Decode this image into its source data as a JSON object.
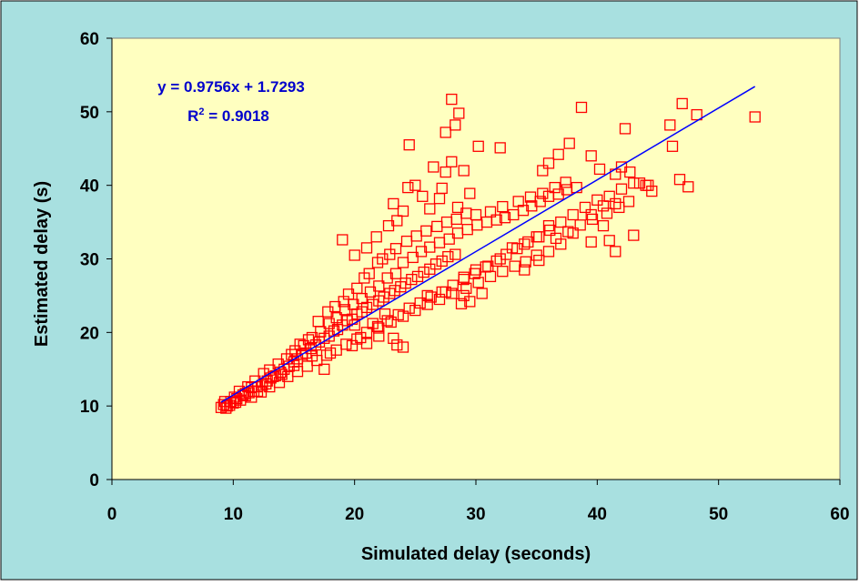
{
  "chart_data": {
    "type": "scatter",
    "title": "",
    "xlabel": "Simulated delay (seconds)",
    "ylabel": "Estimated delay (s)",
    "xlim": [
      0,
      60
    ],
    "ylim": [
      0,
      60
    ],
    "x_ticks": [
      0,
      10,
      20,
      30,
      40,
      50,
      60
    ],
    "y_ticks": [
      0,
      10,
      20,
      30,
      40,
      50,
      60
    ],
    "grid": false,
    "legend": "none",
    "colors": {
      "frame_background": "#a8e0e0",
      "plot_background": "#ffffc0",
      "marker": "#ff0000",
      "trendline": "#0000ff",
      "equation_text": "#0000cc",
      "axis_text": "#000000"
    },
    "annotations": {
      "equation": "y = 0.9756x + 1.7293",
      "r2_prefix": "R",
      "r2_superscript": "2",
      "r2_suffix": " = 0.9018"
    },
    "trendline": {
      "slope": 0.9756,
      "intercept": 1.7293,
      "x_range": [
        9,
        53
      ]
    },
    "series": [
      {
        "marker": "hollow-square",
        "points": [
          [
            9.0,
            9.8
          ],
          [
            9.2,
            10.2
          ],
          [
            9.5,
            10.0
          ],
          [
            9.8,
            10.6
          ],
          [
            10.0,
            10.4
          ],
          [
            10.3,
            11.0
          ],
          [
            10.6,
            10.8
          ],
          [
            11.0,
            11.4
          ],
          [
            11.3,
            11.8
          ],
          [
            11.7,
            12.0
          ],
          [
            12.0,
            12.6
          ],
          [
            12.4,
            12.8
          ],
          [
            12.8,
            13.4
          ],
          [
            13.1,
            13.8
          ],
          [
            13.5,
            14.1
          ],
          [
            13.9,
            14.6
          ],
          [
            14.2,
            15.0
          ],
          [
            14.6,
            15.4
          ],
          [
            15.0,
            16.0
          ],
          [
            15.3,
            16.4
          ],
          [
            15.7,
            17.0
          ],
          [
            16.0,
            17.2
          ],
          [
            16.4,
            17.8
          ],
          [
            16.8,
            18.3
          ],
          [
            17.1,
            18.7
          ],
          [
            17.5,
            19.2
          ],
          [
            17.9,
            19.5
          ],
          [
            18.3,
            20.2
          ],
          [
            18.6,
            20.4
          ],
          [
            19.0,
            21.0
          ],
          [
            19.4,
            21.6
          ],
          [
            19.8,
            21.8
          ],
          [
            20.2,
            22.5
          ],
          [
            20.6,
            22.8
          ],
          [
            21.0,
            23.4
          ],
          [
            21.5,
            23.8
          ],
          [
            22.0,
            24.3
          ],
          [
            22.4,
            24.8
          ],
          [
            22.9,
            25.3
          ],
          [
            23.3,
            25.7
          ],
          [
            23.8,
            26.2
          ],
          [
            24.2,
            26.7
          ],
          [
            24.7,
            27.2
          ],
          [
            25.2,
            27.6
          ],
          [
            25.7,
            28.2
          ],
          [
            26.2,
            28.6
          ],
          [
            26.7,
            29.3
          ],
          [
            27.2,
            29.7
          ],
          [
            27.7,
            30.3
          ],
          [
            28.3,
            30.6
          ],
          [
            10.5,
            12.0
          ],
          [
            11.2,
            12.6
          ],
          [
            11.8,
            13.4
          ],
          [
            12.5,
            14.4
          ],
          [
            13.0,
            14.9
          ],
          [
            13.7,
            15.7
          ],
          [
            14.4,
            16.4
          ],
          [
            15.1,
            17.5
          ],
          [
            15.8,
            18.2
          ],
          [
            16.5,
            19.3
          ],
          [
            17.2,
            20.1
          ],
          [
            17.9,
            21.2
          ],
          [
            18.5,
            22.0
          ],
          [
            19.2,
            23.1
          ],
          [
            19.9,
            23.8
          ],
          [
            20.6,
            24.6
          ],
          [
            21.3,
            25.5
          ],
          [
            22.0,
            26.3
          ],
          [
            22.7,
            27.4
          ],
          [
            23.4,
            28.0
          ],
          [
            11.5,
            11.2
          ],
          [
            12.3,
            11.9
          ],
          [
            13.0,
            12.6
          ],
          [
            13.8,
            13.2
          ],
          [
            14.5,
            14.0
          ],
          [
            15.3,
            14.7
          ],
          [
            16.1,
            15.4
          ],
          [
            16.9,
            16.2
          ],
          [
            17.7,
            16.9
          ],
          [
            18.5,
            17.6
          ],
          [
            19.3,
            18.4
          ],
          [
            20.2,
            19.1
          ],
          [
            21.0,
            20.0
          ],
          [
            21.9,
            20.8
          ],
          [
            22.7,
            21.6
          ],
          [
            23.6,
            22.4
          ],
          [
            24.5,
            23.3
          ],
          [
            25.4,
            24.0
          ],
          [
            26.3,
            24.8
          ],
          [
            27.2,
            25.5
          ],
          [
            28.1,
            26.4
          ],
          [
            29.0,
            27.2
          ],
          [
            29.9,
            28.0
          ],
          [
            30.8,
            28.9
          ],
          [
            31.7,
            29.7
          ],
          [
            32.5,
            30.6
          ],
          [
            33.4,
            31.4
          ],
          [
            34.3,
            32.3
          ],
          [
            35.2,
            33.0
          ],
          [
            36.1,
            33.9
          ],
          [
            24.0,
            29.5
          ],
          [
            24.8,
            30.2
          ],
          [
            25.5,
            31.0
          ],
          [
            26.2,
            31.6
          ],
          [
            27.0,
            32.2
          ],
          [
            27.8,
            32.7
          ],
          [
            28.5,
            33.5
          ],
          [
            29.3,
            34.0
          ],
          [
            30.1,
            34.6
          ],
          [
            30.9,
            35.0
          ],
          [
            31.7,
            35.3
          ],
          [
            32.4,
            35.6
          ],
          [
            33.1,
            36.0
          ],
          [
            33.9,
            36.6
          ],
          [
            34.6,
            37.2
          ],
          [
            35.3,
            37.8
          ],
          [
            36.0,
            38.5
          ],
          [
            36.8,
            38.8
          ],
          [
            37.5,
            39.4
          ],
          [
            38.3,
            39.7
          ],
          [
            29.0,
            27.5
          ],
          [
            30.0,
            28.5
          ],
          [
            31.0,
            29.0
          ],
          [
            32.0,
            30.0
          ],
          [
            33.0,
            31.5
          ],
          [
            34.0,
            32.0
          ],
          [
            35.0,
            33.0
          ],
          [
            36.0,
            34.5
          ],
          [
            37.0,
            35.0
          ],
          [
            38.0,
            36.0
          ],
          [
            39.0,
            37.0
          ],
          [
            40.0,
            38.0
          ],
          [
            41.0,
            38.5
          ],
          [
            42.0,
            39.5
          ],
          [
            43.0,
            40.3
          ],
          [
            44.0,
            40.0
          ],
          [
            44.5,
            39.2
          ],
          [
            41.5,
            37.5
          ],
          [
            40.5,
            37.2
          ],
          [
            39.5,
            36.0
          ],
          [
            19.0,
            32.6
          ],
          [
            20.0,
            30.5
          ],
          [
            21.0,
            31.5
          ],
          [
            21.8,
            33.0
          ],
          [
            22.8,
            34.5
          ],
          [
            23.5,
            35.2
          ],
          [
            23.2,
            37.5
          ],
          [
            24.0,
            36.5
          ],
          [
            24.4,
            39.7
          ],
          [
            25.0,
            40.0
          ],
          [
            25.6,
            38.5
          ],
          [
            26.2,
            36.8
          ],
          [
            27.0,
            38.2
          ],
          [
            27.5,
            41.8
          ],
          [
            28.0,
            43.2
          ],
          [
            27.2,
            39.6
          ],
          [
            28.5,
            37.0
          ],
          [
            29.5,
            38.9
          ],
          [
            24.5,
            45.5
          ],
          [
            27.5,
            47.2
          ],
          [
            28.0,
            51.7
          ],
          [
            28.6,
            49.8
          ],
          [
            28.3,
            48.2
          ],
          [
            29.0,
            42.0
          ],
          [
            26.5,
            42.5
          ],
          [
            30.2,
            45.3
          ],
          [
            32.0,
            45.1
          ],
          [
            35.5,
            42.0
          ],
          [
            36.0,
            43.0
          ],
          [
            36.8,
            44.2
          ],
          [
            37.7,
            45.7
          ],
          [
            38.7,
            50.6
          ],
          [
            39.5,
            44.0
          ],
          [
            40.2,
            42.2
          ],
          [
            41.5,
            41.5
          ],
          [
            42.0,
            42.5
          ],
          [
            42.3,
            47.7
          ],
          [
            42.7,
            41.8
          ],
          [
            43.5,
            40.3
          ],
          [
            44.2,
            40.0
          ],
          [
            46.0,
            48.2
          ],
          [
            46.2,
            45.3
          ],
          [
            46.8,
            40.8
          ],
          [
            47.0,
            51.1
          ],
          [
            47.5,
            39.8
          ],
          [
            48.2,
            49.6
          ],
          [
            53.0,
            49.3
          ],
          [
            36.0,
            31.0
          ],
          [
            37.0,
            32.0
          ],
          [
            38.0,
            33.5
          ],
          [
            39.5,
            32.3
          ],
          [
            40.5,
            34.5
          ],
          [
            41.0,
            32.5
          ],
          [
            41.5,
            31.0
          ],
          [
            43.0,
            33.2
          ],
          [
            35.0,
            30.5
          ],
          [
            34.0,
            28.5
          ],
          [
            35.2,
            29.8
          ],
          [
            30.5,
            25.3
          ],
          [
            29.5,
            24.2
          ],
          [
            28.8,
            23.9
          ],
          [
            29.0,
            25.0
          ],
          [
            27.5,
            25.5
          ],
          [
            26.0,
            25.0
          ],
          [
            23.5,
            18.3
          ],
          [
            23.2,
            19.2
          ],
          [
            24.0,
            18.0
          ],
          [
            22.0,
            19.5
          ],
          [
            21.0,
            18.5
          ],
          [
            20.5,
            19.3
          ],
          [
            19.8,
            18.2
          ],
          [
            20.0,
            21.0
          ],
          [
            21.5,
            21.2
          ],
          [
            22.5,
            22.5
          ],
          [
            18.0,
            17.2
          ],
          [
            17.5,
            15.0
          ],
          [
            16.5,
            16.8
          ],
          [
            15.0,
            15.5
          ],
          [
            14.0,
            14.3
          ],
          [
            13.3,
            14.0
          ],
          [
            12.7,
            13.0
          ],
          [
            12.0,
            12.0
          ],
          [
            11.5,
            12.5
          ],
          [
            11.0,
            11.7
          ],
          [
            10.8,
            11.5
          ],
          [
            10.2,
            10.5
          ],
          [
            9.7,
            10.1
          ],
          [
            9.4,
            9.7
          ],
          [
            9.3,
            10.6
          ],
          [
            10.1,
            11.2
          ],
          [
            14.8,
            17.0
          ],
          [
            15.5,
            18.4
          ],
          [
            16.2,
            19.0
          ],
          [
            17.0,
            21.5
          ],
          [
            17.8,
            22.8
          ],
          [
            18.4,
            23.5
          ],
          [
            19.1,
            24.2
          ],
          [
            19.5,
            25.2
          ],
          [
            20.2,
            26.0
          ],
          [
            20.8,
            27.4
          ],
          [
            21.2,
            28.0
          ],
          [
            21.9,
            29.5
          ],
          [
            22.3,
            30.0
          ],
          [
            22.9,
            30.6
          ],
          [
            23.4,
            31.4
          ],
          [
            24.3,
            32.4
          ],
          [
            25.1,
            33.1
          ],
          [
            25.9,
            33.8
          ],
          [
            26.8,
            34.4
          ],
          [
            27.6,
            35.0
          ],
          [
            28.4,
            35.4
          ],
          [
            29.2,
            36.2
          ],
          [
            30.0,
            36.0
          ],
          [
            31.2,
            36.4
          ],
          [
            32.2,
            37.1
          ],
          [
            33.5,
            37.8
          ],
          [
            34.5,
            38.4
          ],
          [
            35.5,
            38.9
          ],
          [
            36.5,
            39.7
          ],
          [
            37.4,
            40.4
          ],
          [
            22.0,
            20.6
          ],
          [
            23.0,
            21.4
          ],
          [
            24.0,
            22.2
          ],
          [
            25.0,
            23.0
          ],
          [
            26.0,
            23.8
          ],
          [
            27.0,
            24.5
          ],
          [
            28.0,
            25.3
          ],
          [
            29.2,
            26.0
          ],
          [
            30.2,
            26.8
          ],
          [
            31.2,
            27.6
          ],
          [
            32.2,
            28.3
          ],
          [
            33.2,
            29.0
          ],
          [
            34.1,
            29.6
          ],
          [
            36.6,
            32.8
          ],
          [
            37.6,
            33.7
          ],
          [
            38.6,
            34.6
          ],
          [
            39.6,
            35.4
          ],
          [
            40.8,
            36.2
          ],
          [
            41.8,
            37.0
          ],
          [
            42.6,
            37.8
          ]
        ]
      }
    ]
  }
}
